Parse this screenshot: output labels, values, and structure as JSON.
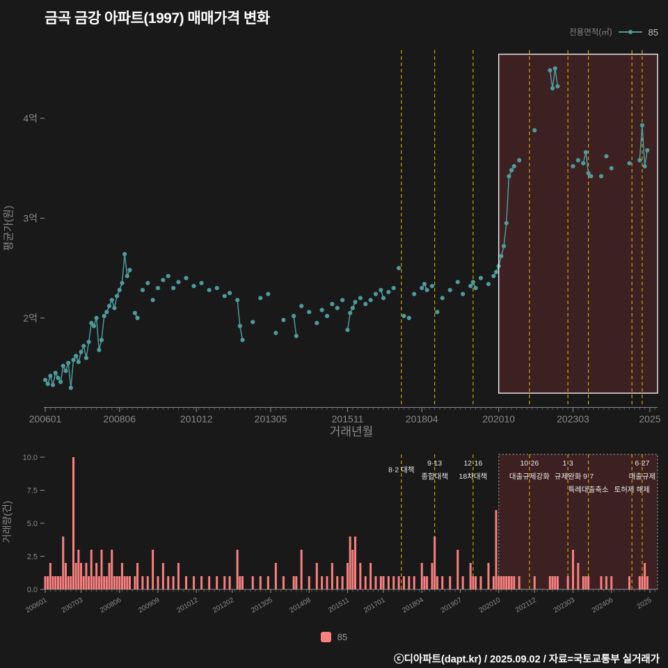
{
  "header": {
    "title": "금곡 금강 아파트(1997) 매매가격 변화",
    "legend_label": "전용면적(㎡)",
    "legend_value": "85"
  },
  "colors": {
    "background": "#191919",
    "series_teal": "#4f9b9b",
    "bar_salmon": "#f8807f",
    "policy_yellow": "#c8a800",
    "region_fill": "rgba(190,60,70,0.22)",
    "region_border_top": "#e8e8e8",
    "region_border_bottom": "#999999",
    "axis_text": "#8a8a8a",
    "annotation_text": "#e8e8e8"
  },
  "policies": [
    {
      "month": "201708",
      "labels": [
        {
          "text": "8·2 대책",
          "row": 1.5
        }
      ]
    },
    {
      "month": "201809",
      "labels": [
        {
          "text": "9·13",
          "row": 1
        },
        {
          "text": "종합대책",
          "row": 2
        }
      ]
    },
    {
      "month": "201912",
      "labels": [
        {
          "text": "12·16",
          "row": 1
        },
        {
          "text": "18차대책",
          "row": 2
        }
      ]
    },
    {
      "month": "202110",
      "labels": [
        {
          "text": "10·26",
          "row": 1
        },
        {
          "text": "대출규제강화",
          "row": 2
        }
      ]
    },
    {
      "month": "202301",
      "labels": [
        {
          "text": "1·3",
          "row": 1
        },
        {
          "text": "규제완화",
          "row": 2
        }
      ]
    },
    {
      "month": "202309",
      "labels": [
        {
          "text": "9·7",
          "row": 2
        },
        {
          "text": "특례대출축소",
          "row": 3
        }
      ]
    },
    {
      "month": "202502",
      "labels": [
        {
          "text": "토허제 해제",
          "row": 3
        }
      ]
    },
    {
      "month": "202506",
      "labels": [
        {
          "text": "6·27",
          "row": 1
        },
        {
          "text": "대출규제",
          "row": 2
        }
      ]
    }
  ],
  "chart_data": [
    {
      "type": "scatter",
      "name": "85",
      "title": "금곡 금강 아파트(1997) 매매가격 변화",
      "xlabel": "거래년월",
      "ylabel": "평균가(원)",
      "ylim": [
        1.1,
        4.75
      ],
      "x_domain": [
        "200601",
        "202512"
      ],
      "grid": false,
      "legend_position": "top-right",
      "y_ticks": [
        {
          "value": 2,
          "label": "2억"
        },
        {
          "value": 3,
          "label": "3억"
        },
        {
          "value": 4,
          "label": "4억"
        }
      ],
      "x_ticks": [
        {
          "month": "200601",
          "label": "200601"
        },
        {
          "month": "200806",
          "label": "200806"
        },
        {
          "month": "201012",
          "label": "201012"
        },
        {
          "month": "201305",
          "label": "201305"
        },
        {
          "month": "201511",
          "label": "201511"
        },
        {
          "month": "201804",
          "label": "201804"
        },
        {
          "month": "202010",
          "label": "202010"
        },
        {
          "month": "202303",
          "label": "202303"
        },
        {
          "month": "202509",
          "label": "2025"
        }
      ],
      "highlight_region": {
        "start": "202010",
        "end": "202512"
      },
      "points": [
        [
          "200601",
          1.38
        ],
        [
          "200602",
          1.34
        ],
        [
          "200603",
          1.42
        ],
        [
          "200604",
          1.33
        ],
        [
          "200605",
          1.45
        ],
        [
          "200606",
          1.4
        ],
        [
          "200607",
          1.36
        ],
        [
          "200608",
          1.52
        ],
        [
          "200609",
          1.47
        ],
        [
          "200610",
          1.55
        ],
        [
          "200611",
          1.3
        ],
        [
          "200612",
          1.58
        ],
        [
          "200701",
          1.62
        ],
        [
          "200702",
          1.56
        ],
        [
          "200703",
          1.66
        ],
        [
          "200704",
          1.72
        ],
        [
          "200705",
          1.6
        ],
        [
          "200706",
          1.76
        ],
        [
          "200707",
          1.95
        ],
        [
          "200708",
          1.92
        ],
        [
          "200709",
          2.0
        ],
        [
          "200710",
          1.68
        ],
        [
          "200711",
          1.78
        ],
        [
          "200712",
          2.02
        ],
        [
          "200801",
          2.06
        ],
        [
          "200802",
          2.12
        ],
        [
          "200803",
          2.18
        ],
        [
          "200804",
          2.1
        ],
        [
          "200805",
          2.22
        ],
        [
          "200806",
          2.28
        ],
        [
          "200807",
          2.35
        ],
        [
          "200808",
          2.64
        ],
        [
          "200809",
          2.42
        ],
        [
          "200810",
          2.48
        ],
        [
          "200812",
          2.05
        ],
        [
          "200901",
          2.0
        ],
        [
          "200903",
          2.28
        ],
        [
          "200905",
          2.35
        ],
        [
          "200907",
          2.18
        ],
        [
          "200909",
          2.3
        ],
        [
          "200911",
          2.38
        ],
        [
          "201001",
          2.42
        ],
        [
          "201003",
          2.3
        ],
        [
          "201005",
          2.36
        ],
        [
          "201008",
          2.4
        ],
        [
          "201011",
          2.32
        ],
        [
          "201102",
          2.35
        ],
        [
          "201105",
          2.28
        ],
        [
          "201108",
          2.3
        ],
        [
          "201111",
          2.22
        ],
        [
          "201201",
          2.25
        ],
        [
          "201204",
          2.18
        ],
        [
          "201205",
          1.92
        ],
        [
          "201206",
          1.78
        ],
        [
          "201210",
          1.96
        ],
        [
          "201301",
          2.2
        ],
        [
          "201304",
          2.24
        ],
        [
          "201307",
          1.85
        ],
        [
          "201310",
          1.98
        ],
        [
          "201402",
          2.02
        ],
        [
          "201403",
          1.82
        ],
        [
          "201405",
          2.12
        ],
        [
          "201408",
          2.06
        ],
        [
          "201411",
          1.95
        ],
        [
          "201501",
          2.08
        ],
        [
          "201503",
          2.02
        ],
        [
          "201505",
          2.14
        ],
        [
          "201507",
          2.1
        ],
        [
          "201509",
          2.18
        ],
        [
          "201511",
          1.88
        ],
        [
          "201512",
          2.05
        ],
        [
          "201601",
          2.1
        ],
        [
          "201602",
          2.16
        ],
        [
          "201604",
          2.2
        ],
        [
          "201606",
          2.14
        ],
        [
          "201608",
          2.18
        ],
        [
          "201610",
          2.24
        ],
        [
          "201612",
          2.28
        ],
        [
          "201701",
          2.2
        ],
        [
          "201703",
          2.26
        ],
        [
          "201705",
          2.3
        ],
        [
          "201707",
          2.5
        ],
        [
          "201709",
          2.02
        ],
        [
          "201711",
          2.0
        ],
        [
          "201801",
          2.24
        ],
        [
          "201804",
          2.3
        ],
        [
          "201805",
          2.34
        ],
        [
          "201806",
          2.28
        ],
        [
          "201808",
          2.32
        ],
        [
          "201810",
          2.06
        ],
        [
          "201812",
          2.2
        ],
        [
          "201903",
          2.28
        ],
        [
          "201906",
          2.36
        ],
        [
          "201908",
          2.24
        ],
        [
          "201911",
          2.32
        ],
        [
          "201912",
          2.36
        ],
        [
          "202001",
          2.3
        ],
        [
          "202003",
          2.4
        ],
        [
          "202006",
          2.34
        ],
        [
          "202008",
          2.42
        ],
        [
          "202009",
          2.46
        ],
        [
          "202010",
          2.52
        ],
        [
          "202011",
          2.62
        ],
        [
          "202012",
          2.72
        ],
        [
          "202101",
          2.95
        ],
        [
          "202102",
          3.42
        ],
        [
          "202103",
          3.48
        ],
        [
          "202104",
          3.52
        ],
        [
          "202106",
          3.58
        ],
        [
          "202112",
          3.88
        ],
        [
          "202206",
          4.48
        ],
        [
          "202207",
          4.3
        ],
        [
          "202208",
          4.5
        ],
        [
          "202209",
          4.32
        ],
        [
          "202303",
          3.52
        ],
        [
          "202305",
          3.58
        ],
        [
          "202307",
          3.55
        ],
        [
          "202308",
          3.66
        ],
        [
          "202309",
          3.45
        ],
        [
          "202310",
          3.42
        ],
        [
          "202402",
          3.42
        ],
        [
          "202404",
          3.62
        ],
        [
          "202406",
          3.5
        ],
        [
          "202501",
          3.55
        ],
        [
          "202505",
          3.58
        ],
        [
          "202506",
          3.93
        ],
        [
          "202507",
          3.52
        ],
        [
          "202508",
          3.68
        ]
      ]
    },
    {
      "type": "bar",
      "name": "85",
      "xlabel": "",
      "ylabel": "거래량(건)",
      "ylim": [
        0,
        10
      ],
      "x_domain": [
        "200601",
        "202512"
      ],
      "legend_position": "bottom-center",
      "y_ticks": [
        {
          "value": 0,
          "label": "0.0"
        },
        {
          "value": 2.5,
          "label": "2.5"
        },
        {
          "value": 5,
          "label": "5.0"
        },
        {
          "value": 7.5,
          "label": "7.5"
        },
        {
          "value": 10,
          "label": "10.0"
        }
      ],
      "x_ticks": [
        {
          "month": "200601",
          "label": "200601"
        },
        {
          "month": "200703",
          "label": "200703"
        },
        {
          "month": "200806",
          "label": "200806"
        },
        {
          "month": "200909",
          "label": "200909"
        },
        {
          "month": "201012",
          "label": "201012"
        },
        {
          "month": "201202",
          "label": "201202"
        },
        {
          "month": "201305",
          "label": "201305"
        },
        {
          "month": "201408",
          "label": "201408"
        },
        {
          "month": "201511",
          "label": "201511"
        },
        {
          "month": "201701",
          "label": "201701"
        },
        {
          "month": "201804",
          "label": "201804"
        },
        {
          "month": "201907",
          "label": "201907"
        },
        {
          "month": "202010",
          "label": "202010"
        },
        {
          "month": "202112",
          "label": "202112"
        },
        {
          "month": "202303",
          "label": "202303"
        },
        {
          "month": "202406",
          "label": "202406"
        },
        {
          "month": "202509",
          "label": "2025"
        }
      ],
      "highlight_region": {
        "start": "202010",
        "end": "202512"
      },
      "bars": [
        [
          "200601",
          1
        ],
        [
          "200602",
          1
        ],
        [
          "200603",
          2
        ],
        [
          "200604",
          1
        ],
        [
          "200605",
          1
        ],
        [
          "200606",
          1
        ],
        [
          "200607",
          1
        ],
        [
          "200608",
          4
        ],
        [
          "200609",
          2
        ],
        [
          "200610",
          1
        ],
        [
          "200611",
          1
        ],
        [
          "200612",
          10
        ],
        [
          "200701",
          2
        ],
        [
          "200702",
          3
        ],
        [
          "200703",
          2
        ],
        [
          "200704",
          1
        ],
        [
          "200705",
          2
        ],
        [
          "200706",
          1
        ],
        [
          "200707",
          3
        ],
        [
          "200708",
          1
        ],
        [
          "200709",
          2
        ],
        [
          "200710",
          1
        ],
        [
          "200711",
          3
        ],
        [
          "200712",
          1
        ],
        [
          "200801",
          1
        ],
        [
          "200802",
          2
        ],
        [
          "200803",
          3
        ],
        [
          "200804",
          1
        ],
        [
          "200805",
          1
        ],
        [
          "200806",
          1
        ],
        [
          "200807",
          2
        ],
        [
          "200808",
          1
        ],
        [
          "200809",
          1
        ],
        [
          "200810",
          1
        ],
        [
          "200812",
          1
        ],
        [
          "200901",
          2
        ],
        [
          "200903",
          1
        ],
        [
          "200905",
          1
        ],
        [
          "200907",
          3
        ],
        [
          "200909",
          1
        ],
        [
          "200911",
          2
        ],
        [
          "201001",
          1
        ],
        [
          "201003",
          1
        ],
        [
          "201005",
          2
        ],
        [
          "201008",
          1
        ],
        [
          "201011",
          1
        ],
        [
          "201102",
          1
        ],
        [
          "201105",
          1
        ],
        [
          "201108",
          1
        ],
        [
          "201111",
          1
        ],
        [
          "201201",
          1
        ],
        [
          "201204",
          3
        ],
        [
          "201205",
          1
        ],
        [
          "201206",
          1
        ],
        [
          "201210",
          1
        ],
        [
          "201301",
          1
        ],
        [
          "201304",
          1
        ],
        [
          "201307",
          2
        ],
        [
          "201310",
          1
        ],
        [
          "201402",
          1
        ],
        [
          "201403",
          1
        ],
        [
          "201405",
          3
        ],
        [
          "201408",
          1
        ],
        [
          "201411",
          2
        ],
        [
          "201501",
          1
        ],
        [
          "201503",
          1
        ],
        [
          "201505",
          2
        ],
        [
          "201507",
          1
        ],
        [
          "201509",
          1
        ],
        [
          "201511",
          2
        ],
        [
          "201512",
          4
        ],
        [
          "201601",
          3
        ],
        [
          "201602",
          4
        ],
        [
          "201604",
          2
        ],
        [
          "201606",
          1
        ],
        [
          "201608",
          2
        ],
        [
          "201610",
          1
        ],
        [
          "201612",
          1
        ],
        [
          "201701",
          1
        ],
        [
          "201703",
          1
        ],
        [
          "201705",
          1
        ],
        [
          "201707",
          1
        ],
        [
          "201709",
          1
        ],
        [
          "201711",
          1
        ],
        [
          "201801",
          1
        ],
        [
          "201804",
          2
        ],
        [
          "201805",
          1
        ],
        [
          "201806",
          1
        ],
        [
          "201808",
          2
        ],
        [
          "201809",
          4
        ],
        [
          "201810",
          1
        ],
        [
          "201812",
          1
        ],
        [
          "201903",
          1
        ],
        [
          "201906",
          3
        ],
        [
          "201908",
          1
        ],
        [
          "201911",
          2
        ],
        [
          "201912",
          1
        ],
        [
          "202001",
          1
        ],
        [
          "202003",
          1
        ],
        [
          "202006",
          2
        ],
        [
          "202008",
          1
        ],
        [
          "202009",
          6
        ],
        [
          "202010",
          1
        ],
        [
          "202011",
          1
        ],
        [
          "202012",
          1
        ],
        [
          "202101",
          1
        ],
        [
          "202102",
          1
        ],
        [
          "202103",
          1
        ],
        [
          "202104",
          1
        ],
        [
          "202106",
          1
        ],
        [
          "202112",
          1
        ],
        [
          "202206",
          1
        ],
        [
          "202207",
          1
        ],
        [
          "202208",
          1
        ],
        [
          "202209",
          1
        ],
        [
          "202301",
          1
        ],
        [
          "202303",
          3
        ],
        [
          "202305",
          2
        ],
        [
          "202307",
          1
        ],
        [
          "202308",
          1
        ],
        [
          "202309",
          1
        ],
        [
          "202402",
          1
        ],
        [
          "202404",
          1
        ],
        [
          "202406",
          1
        ],
        [
          "202501",
          1
        ],
        [
          "202505",
          1
        ],
        [
          "202506",
          1
        ],
        [
          "202507",
          2
        ],
        [
          "202508",
          1
        ]
      ]
    }
  ],
  "footer": {
    "legend_value": "85",
    "credit": "ⓒ디아파트(dapt.kr) / 2025.09.02 / 자료=국토교통부 실거래가"
  }
}
